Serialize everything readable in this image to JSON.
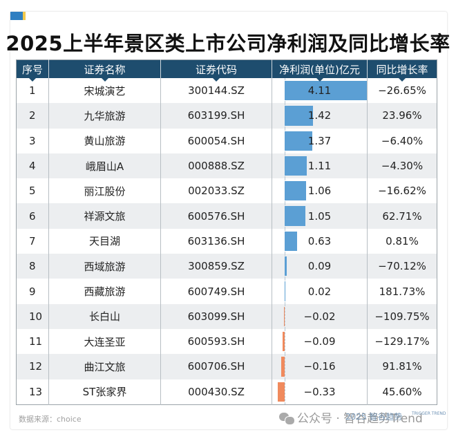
{
  "title": "2025上半年景区类上市公司净利润及同比增长率",
  "table": {
    "headers": [
      "序号",
      "证券名称",
      "证券代码",
      "净利润(单位)亿元",
      "同比增长率"
    ],
    "rows": [
      {
        "idx": "1",
        "name": "宋城演艺",
        "code": "300144.SZ",
        "profit": "4.11",
        "growth": "−26.65%"
      },
      {
        "idx": "2",
        "name": "九华旅游",
        "code": "603199.SH",
        "profit": "1.42",
        "growth": "23.96%"
      },
      {
        "idx": "3",
        "name": "黄山旅游",
        "code": "600054.SH",
        "profit": "1.37",
        "growth": "−6.40%"
      },
      {
        "idx": "4",
        "name": "峨眉山A",
        "code": "000888.SZ",
        "profit": "1.11",
        "growth": "−4.30%"
      },
      {
        "idx": "5",
        "name": "丽江股份",
        "code": "002033.SZ",
        "profit": "1.06",
        "growth": "−16.62%"
      },
      {
        "idx": "6",
        "name": "祥源文旅",
        "code": "600576.SH",
        "profit": "1.05",
        "growth": "62.71%"
      },
      {
        "idx": "7",
        "name": "天目湖",
        "code": "603136.SH",
        "profit": "0.63",
        "growth": "0.81%"
      },
      {
        "idx": "8",
        "name": "西域旅游",
        "code": "300859.SZ",
        "profit": "0.09",
        "growth": "−70.12%"
      },
      {
        "idx": "9",
        "name": "西藏旅游",
        "code": "600749.SH",
        "profit": "0.02",
        "growth": "181.73%"
      },
      {
        "idx": "10",
        "name": "长白山",
        "code": "603099.SH",
        "profit": "−0.02",
        "growth": "−109.75%"
      },
      {
        "idx": "11",
        "name": "大连圣亚",
        "code": "600593.SH",
        "profit": "−0.09",
        "growth": "−129.17%"
      },
      {
        "idx": "12",
        "name": "曲江文旅",
        "code": "600706.SH",
        "profit": "−0.16",
        "growth": "91.81%"
      },
      {
        "idx": "13",
        "name": "ST张家界",
        "code": "000430.SZ",
        "profit": "−0.33",
        "growth": "45.60%"
      }
    ]
  },
  "footer": {
    "source": "数据来源：choice",
    "watermark": "公众号 · 智谷趋势Trend",
    "logo_text": "2025 智谷趋势",
    "logo_tag": "TRIGGER TREND"
  },
  "colors": {
    "header_bg": "#1e4d6e",
    "positive_bar": "#5b9fd4",
    "negative_bar": "#f08a5d",
    "alt_row": "#eceef0"
  },
  "chart_data": {
    "type": "table",
    "title": "2025上半年景区类上市公司净利润及同比增长率",
    "columns": [
      "序号",
      "证券名称",
      "证券代码",
      "净利润(单位)亿元",
      "同比增长率"
    ],
    "categories": [
      "宋城演艺",
      "九华旅游",
      "黄山旅游",
      "峨眉山A",
      "丽江股份",
      "祥源文旅",
      "天目湖",
      "西域旅游",
      "西藏旅游",
      "长白山",
      "大连圣亚",
      "曲江文旅",
      "ST张家界"
    ],
    "codes": [
      "300144.SZ",
      "603199.SH",
      "600054.SH",
      "000888.SZ",
      "002033.SZ",
      "600576.SH",
      "603136.SH",
      "300859.SZ",
      "600749.SH",
      "603099.SH",
      "600593.SH",
      "600706.SH",
      "000430.SZ"
    ],
    "series": [
      {
        "name": "净利润(亿元)",
        "values": [
          4.11,
          1.42,
          1.37,
          1.11,
          1.06,
          1.05,
          0.63,
          0.09,
          0.02,
          -0.02,
          -0.09,
          -0.16,
          -0.33
        ],
        "display": "data-bar"
      },
      {
        "name": "同比增长率(%)",
        "values": [
          -26.65,
          23.96,
          -6.4,
          -4.3,
          -16.62,
          62.71,
          0.81,
          -70.12,
          181.73,
          -109.75,
          -129.17,
          91.81,
          45.6
        ]
      }
    ],
    "source": "choice"
  }
}
